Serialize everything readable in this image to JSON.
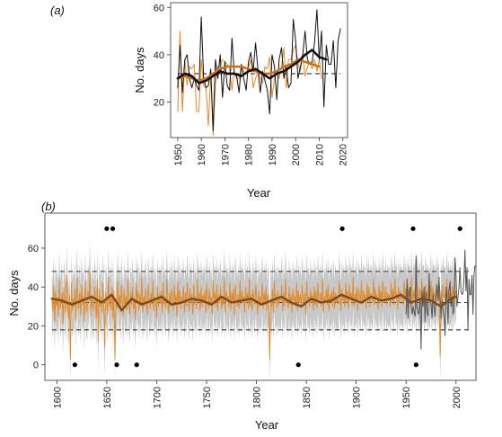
{
  "chart_data": [
    {
      "type": "line",
      "panel_label": "(a)",
      "xlabel": "Year",
      "ylabel": "No. days",
      "xlim": [
        1947,
        2022
      ],
      "ylim": [
        5,
        62
      ],
      "x_ticks": [
        1950,
        1960,
        1970,
        1980,
        1990,
        2000,
        2010,
        2020
      ],
      "y_ticks": [
        20,
        40,
        60
      ],
      "grid": false,
      "reference_line": 32,
      "series": [
        {
          "color": "#e08a2c",
          "style": "annual",
          "x": [
            1950,
            1951,
            1952,
            1953,
            1954,
            1955,
            1956,
            1957,
            1958,
            1959,
            1960,
            1961,
            1962,
            1963,
            1964,
            1965,
            1966,
            1967,
            1968,
            1969,
            1970,
            1971,
            1972,
            1973,
            1974,
            1975,
            1976,
            1977,
            1978,
            1979,
            1980,
            1981,
            1982,
            1983,
            1984,
            1985,
            1986,
            1987,
            1988,
            1989,
            1990,
            1991,
            1992,
            1993,
            1994,
            1995,
            1996,
            1997,
            1998,
            1999,
            2000,
            2001,
            2002,
            2003,
            2004,
            2005,
            2006,
            2007,
            2008,
            2009,
            2010,
            2011
          ],
          "values": [
            16,
            50,
            16,
            38,
            27,
            35,
            34,
            36,
            16,
            16,
            38,
            27,
            26,
            10,
            32,
            6,
            28,
            35,
            36,
            38,
            37,
            36,
            34,
            25,
            33,
            30,
            30,
            35,
            33,
            32,
            35,
            38,
            26,
            30,
            33,
            30,
            28,
            35,
            34,
            39,
            22,
            30,
            32,
            30,
            35,
            43,
            26,
            38,
            38,
            42,
            44,
            36,
            33,
            40,
            31,
            35,
            37,
            34,
            38,
            33,
            38,
            30
          ]
        },
        {
          "color": "#111111",
          "style": "annual",
          "x": [
            1950,
            1951,
            1952,
            1953,
            1954,
            1955,
            1956,
            1957,
            1958,
            1959,
            1960,
            1961,
            1962,
            1963,
            1964,
            1965,
            1966,
            1967,
            1968,
            1969,
            1970,
            1971,
            1972,
            1973,
            1974,
            1975,
            1976,
            1977,
            1978,
            1979,
            1980,
            1981,
            1982,
            1983,
            1984,
            1985,
            1986,
            1987,
            1988,
            1989,
            1990,
            1991,
            1992,
            1993,
            1994,
            1995,
            1996,
            1997,
            1998,
            1999,
            2000,
            2001,
            2002,
            2003,
            2004,
            2005,
            2006,
            2007,
            2008,
            2009,
            2010,
            2011,
            2012,
            2013,
            2014,
            2015,
            2016,
            2017,
            2018,
            2019
          ],
          "values": [
            26,
            44,
            24,
            38,
            40,
            30,
            26,
            30,
            27,
            25,
            56,
            30,
            26,
            27,
            34,
            8,
            38,
            30,
            40,
            22,
            37,
            27,
            25,
            47,
            32,
            31,
            24,
            36,
            30,
            25,
            37,
            41,
            33,
            45,
            34,
            24,
            33,
            29,
            25,
            15,
            40,
            35,
            21,
            38,
            43,
            30,
            35,
            26,
            28,
            55,
            46,
            30,
            35,
            40,
            50,
            38,
            36,
            37,
            45,
            59,
            38,
            50,
            18,
            44,
            36,
            36,
            46,
            26,
            46,
            51
          ]
        },
        {
          "color": "#c8731f",
          "style": "smooth",
          "x": [
            1950,
            1953,
            1956,
            1959,
            1962,
            1965,
            1968,
            1971,
            1974,
            1977,
            1980,
            1983,
            1986,
            1989,
            1992,
            1995,
            1998,
            2001,
            2004,
            2007,
            2010
          ],
          "values": [
            30,
            31,
            30,
            29,
            30,
            32,
            34,
            35,
            35,
            35,
            34,
            33,
            32,
            32,
            33,
            35,
            36,
            38,
            37,
            36,
            35
          ]
        },
        {
          "color": "#111111",
          "style": "smooth",
          "x": [
            1950,
            1953,
            1956,
            1959,
            1962,
            1965,
            1968,
            1971,
            1974,
            1977,
            1980,
            1983,
            1986,
            1989,
            1992,
            1995,
            1998,
            2001,
            2004,
            2007,
            2010,
            2013
          ],
          "values": [
            30,
            32,
            31,
            28,
            29,
            31,
            33,
            32,
            32,
            31,
            33,
            34,
            32,
            30,
            32,
            33,
            35,
            37,
            40,
            42,
            39,
            38
          ]
        }
      ]
    },
    {
      "type": "line",
      "panel_label": "(b)",
      "xlabel": "Year",
      "ylabel": "No. days",
      "xlim": [
        1588,
        2020
      ],
      "ylim": [
        -8,
        78
      ],
      "x_ticks": [
        1600,
        1650,
        1700,
        1750,
        1800,
        1850,
        1900,
        1950,
        2000
      ],
      "y_ticks": [
        0,
        20,
        40,
        60
      ],
      "grid": false,
      "reference_lines": [
        18,
        32,
        48
      ],
      "series": [
        {
          "color": "#e08a2c",
          "style": "annual",
          "x_start": 1595,
          "x_end": 2000,
          "values": [
            34,
            28,
            41,
            22,
            38,
            30,
            35,
            25,
            44,
            29,
            33,
            37,
            21,
            40,
            32,
            27,
            46,
            31,
            24,
            36,
            3,
            42,
            28,
            34,
            30,
            39,
            23,
            45,
            33,
            29,
            37,
            26,
            41,
            31,
            35,
            22,
            43,
            30,
            27,
            38,
            33,
            48,
            25,
            36,
            31,
            28,
            40,
            34,
            24,
            44,
            12,
            39,
            30,
            35,
            27,
            42,
            31,
            9,
            37,
            33,
            26,
            45,
            30,
            36,
            28,
            40,
            24,
            38,
            3,
            34,
            29,
            43,
            31,
            36,
            27,
            41,
            33,
            25,
            39,
            30,
            35,
            28,
            44,
            32,
            26,
            37,
            31,
            40,
            29,
            34,
            23,
            42,
            33,
            38,
            28,
            36,
            31,
            45,
            27,
            35,
            30,
            39,
            32,
            26,
            41,
            34,
            29,
            37,
            31,
            43,
            28,
            35,
            33,
            24,
            40,
            30,
            36,
            32,
            38,
            27,
            42,
            31,
            35,
            29,
            44,
            33,
            26,
            37,
            30,
            39,
            34,
            28,
            41,
            32,
            36,
            25,
            43,
            31,
            38,
            29,
            35,
            33,
            40,
            27,
            37,
            30,
            42,
            34,
            28,
            39,
            32,
            36,
            26,
            41,
            31,
            35,
            29,
            44,
            33,
            37,
            28,
            40,
            30,
            36,
            32,
            38,
            27,
            42,
            34,
            29,
            39,
            31,
            35,
            26,
            43,
            33,
            37,
            30,
            41,
            28,
            36,
            32,
            40,
            29,
            34,
            31,
            45,
            27,
            38,
            33,
            35,
            30,
            42,
            28,
            37,
            32,
            39,
            26,
            41,
            34,
            30,
            36,
            29,
            43,
            31,
            38,
            33,
            35,
            27,
            40,
            32,
            37,
            29,
            44,
            30,
            36,
            28,
            39,
            34,
            31,
            41,
            33,
            26,
            38,
            30,
            35,
            32,
            42,
            29,
            37,
            31,
            40,
            28,
            36,
            33,
            3,
            34,
            30,
            39,
            27,
            43,
            32,
            36,
            29,
            38,
            31,
            35,
            33,
            41,
            28,
            37,
            30,
            44,
            32,
            34,
            29,
            40,
            31,
            36,
            27,
            39,
            33,
            35,
            30,
            42,
            28,
            38,
            32,
            36,
            29,
            41,
            34,
            31,
            37,
            26,
            43,
            33,
            35,
            30,
            39,
            32,
            36,
            28,
            40,
            31,
            38,
            29,
            42,
            34,
            33,
            37,
            30,
            44,
            27,
            35,
            32,
            39,
            31,
            41,
            28,
            36,
            33,
            38,
            30,
            40,
            29,
            37,
            32,
            34,
            31,
            43,
            35,
            28,
            39,
            33,
            36,
            30,
            42,
            32,
            38,
            29,
            41,
            34,
            37,
            31,
            45,
            30,
            36,
            33,
            40,
            28,
            39,
            35,
            32,
            43,
            31,
            38,
            34,
            36,
            29,
            42,
            33,
            40,
            30,
            37,
            35,
            32,
            44,
            31,
            39,
            34,
            36,
            29,
            41,
            33,
            38,
            30,
            43,
            35,
            32,
            40,
            31,
            37,
            34,
            36,
            30,
            42,
            33,
            39,
            31,
            44,
            35,
            37,
            29,
            40,
            32,
            38,
            34,
            36,
            31,
            43,
            33,
            39,
            30,
            41,
            35,
            37,
            32,
            45,
            31,
            38,
            34,
            40,
            29,
            42,
            36,
            33,
            39,
            31,
            44,
            35,
            37,
            30,
            41,
            34,
            38,
            32,
            36,
            33,
            43,
            31,
            40,
            35,
            37,
            30,
            42,
            34,
            39,
            32,
            5,
            38,
            33,
            41,
            35,
            36,
            31,
            44,
            34,
            39,
            33,
            37,
            32,
            40,
            30,
            42,
            35,
            38
          ],
          "uncertainty": 15
        },
        {
          "color": "#555555",
          "style": "annual",
          "x_start": 1950,
          "x_end": 2019,
          "values": [
            26,
            44,
            24,
            38,
            40,
            30,
            26,
            30,
            27,
            25,
            56,
            30,
            26,
            27,
            34,
            8,
            38,
            30,
            40,
            22,
            37,
            27,
            25,
            47,
            32,
            31,
            24,
            36,
            30,
            25,
            37,
            41,
            33,
            45,
            34,
            24,
            33,
            29,
            25,
            15,
            40,
            35,
            21,
            38,
            43,
            30,
            35,
            26,
            28,
            55,
            46,
            30,
            35,
            40,
            50,
            38,
            36,
            37,
            45,
            59,
            38,
            50,
            18,
            44,
            36,
            36,
            46,
            26,
            46,
            51
          ]
        },
        {
          "color": "#7a4a1c",
          "style": "smooth",
          "x": [
            1595,
            1605,
            1615,
            1625,
            1635,
            1645,
            1655,
            1665,
            1675,
            1685,
            1695,
            1705,
            1715,
            1725,
            1735,
            1745,
            1755,
            1765,
            1775,
            1785,
            1795,
            1805,
            1815,
            1825,
            1835,
            1845,
            1855,
            1865,
            1875,
            1885,
            1895,
            1905,
            1915,
            1925,
            1935,
            1945,
            1955,
            1965,
            1975,
            1985,
            1995,
            2000
          ],
          "values": [
            34,
            33,
            31,
            33,
            35,
            32,
            36,
            28,
            34,
            31,
            33,
            35,
            31,
            32,
            34,
            33,
            31,
            35,
            32,
            33,
            34,
            31,
            33,
            35,
            32,
            30,
            34,
            32,
            33,
            36,
            34,
            32,
            35,
            33,
            34,
            36,
            32,
            34,
            33,
            30,
            34,
            35
          ]
        }
      ],
      "extreme_high_years": [
        1650,
        1656,
        1886,
        1957,
        2004
      ],
      "extreme_low_years": [
        1618,
        1660,
        1680,
        1842,
        1960
      ],
      "extreme_high_value": 70,
      "extreme_low_value": 0
    }
  ]
}
